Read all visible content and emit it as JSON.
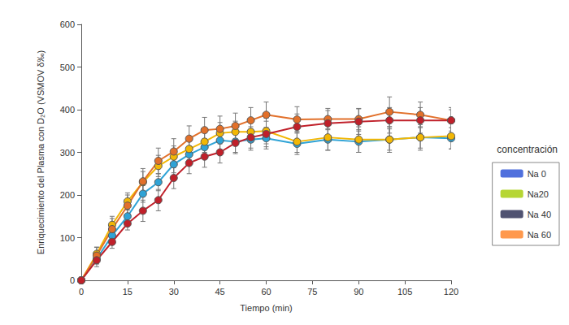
{
  "chart_data": {
    "type": "line",
    "x_label": "Tiempo (min)",
    "y_label": "Enriquecimiento del Plasma con D₂O (VSMOV δ‰)",
    "annotation": "concentración",
    "x": [
      0,
      5,
      10,
      15,
      20,
      25,
      30,
      35,
      40,
      45,
      50,
      55,
      60,
      70,
      80,
      90,
      100,
      110,
      120
    ],
    "series": [
      {
        "name": "Na 0",
        "color": "#2fa3d6",
        "marker": "circle",
        "line_style": "solid",
        "values": [
          0,
          50,
          105,
          150,
          203,
          230,
          272,
          295,
          312,
          328,
          325,
          330,
          333,
          320,
          330,
          325,
          330,
          335,
          333
        ],
        "errors": [
          0,
          10,
          15,
          15,
          20,
          20,
          20,
          20,
          20,
          25,
          25,
          25,
          25,
          25,
          25,
          25,
          25,
          25,
          25
        ]
      },
      {
        "name": "Na20",
        "color": "#f2b705",
        "marker": "circle",
        "line_style": "solid",
        "values": [
          0,
          62,
          130,
          185,
          230,
          268,
          290,
          308,
          325,
          345,
          348,
          348,
          350,
          325,
          335,
          330,
          330,
          335,
          338
        ],
        "errors": [
          0,
          15,
          20,
          20,
          25,
          25,
          25,
          25,
          25,
          25,
          25,
          25,
          30,
          25,
          30,
          30,
          30,
          30,
          30
        ]
      },
      {
        "name": "Na 40",
        "color": "#e2702a",
        "marker": "circle",
        "line_style": "solid",
        "values": [
          0,
          58,
          120,
          175,
          232,
          280,
          302,
          332,
          352,
          355,
          362,
          375,
          388,
          377,
          378,
          378,
          395,
          388,
          375
        ],
        "errors": [
          0,
          20,
          25,
          25,
          30,
          30,
          30,
          30,
          30,
          30,
          30,
          30,
          30,
          30,
          25,
          25,
          35,
          30,
          25
        ]
      },
      {
        "name": "Na 60",
        "color": "#c0202a",
        "marker": "circle",
        "line_style": "solid",
        "values": [
          0,
          47,
          90,
          133,
          163,
          188,
          240,
          275,
          290,
          300,
          322,
          335,
          343,
          360,
          368,
          372,
          375,
          375,
          375
        ],
        "errors": [
          0,
          15,
          15,
          15,
          25,
          25,
          25,
          25,
          25,
          25,
          25,
          25,
          30,
          30,
          30,
          30,
          30,
          30,
          30
        ]
      }
    ],
    "xlim": [
      0,
      120
    ],
    "xticks": [
      0,
      15,
      30,
      45,
      60,
      75,
      90,
      105,
      120
    ],
    "ylim": [
      0,
      600
    ],
    "yticks": [
      0,
      100,
      200,
      300,
      400,
      500,
      600
    ],
    "grid": false,
    "legend": "right"
  }
}
